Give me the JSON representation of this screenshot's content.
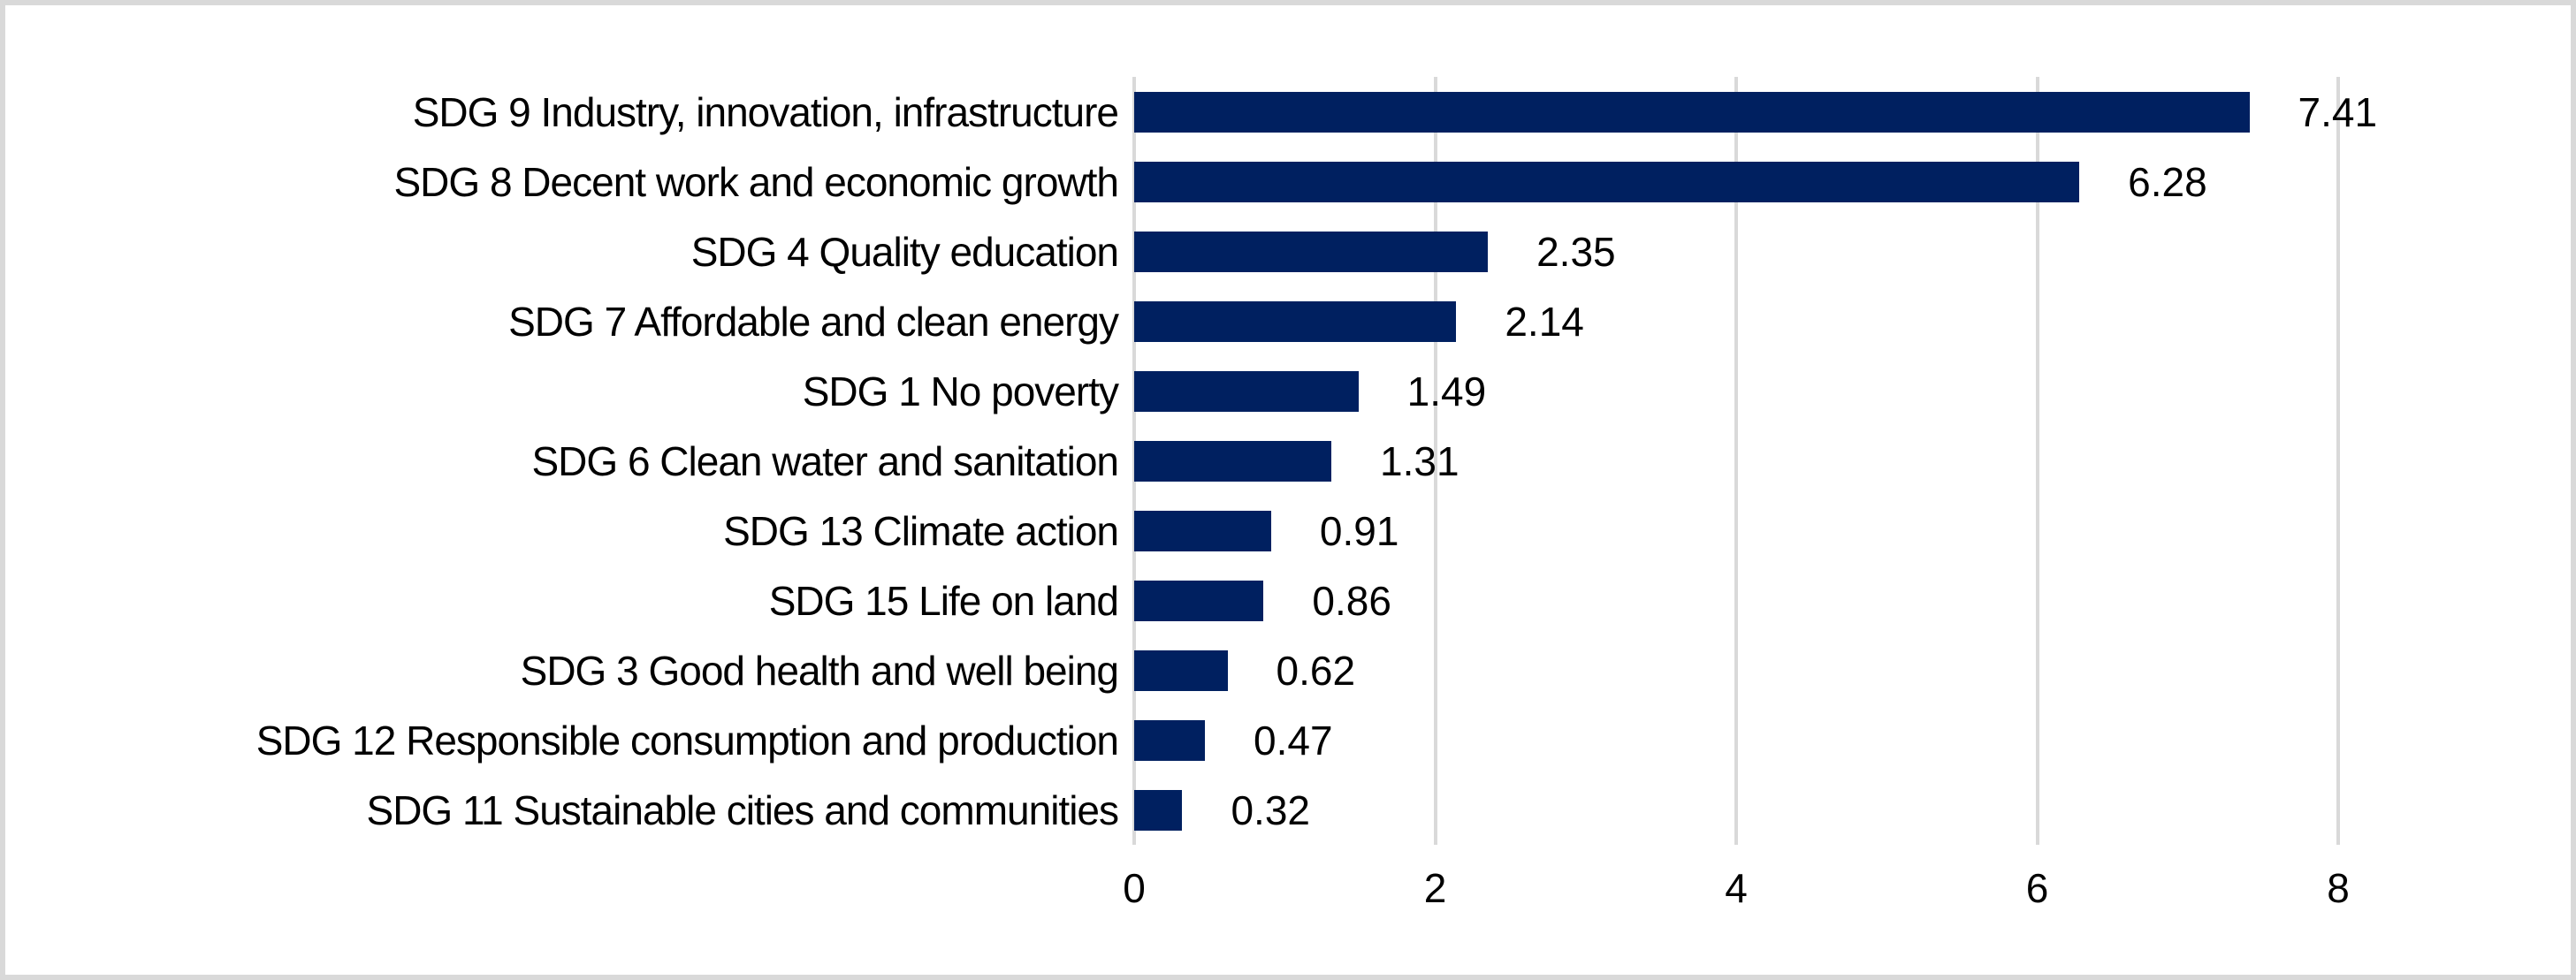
{
  "chart_data": {
    "type": "bar",
    "orientation": "horizontal",
    "title": "",
    "xlabel": "",
    "ylabel": "",
    "categories": [
      "SDG 9 Industry, innovation, infrastructure",
      "SDG 8 Decent work and economic growth",
      "SDG 4 Quality education",
      "SDG 7 Affordable and clean energy",
      "SDG 1 No poverty",
      "SDG 6 Clean water and sanitation",
      "SDG 13 Climate action",
      "SDG 15 Life on land",
      "SDG 3 Good health and well being",
      "SDG 12 Responsible consumption and production",
      "SDG 11 Sustainable cities and communities"
    ],
    "values": [
      7.41,
      6.28,
      2.35,
      2.14,
      1.49,
      1.31,
      0.91,
      0.86,
      0.62,
      0.47,
      0.32
    ],
    "value_labels": [
      "7.41",
      "6.28",
      "2.35",
      "2.14",
      "1.49",
      "1.31",
      "0.91",
      "0.86",
      "0.62",
      "0.47",
      "0.32"
    ],
    "x_ticks": [
      0,
      2,
      4,
      6,
      8
    ],
    "x_tick_labels": [
      "0",
      "2",
      "4",
      "6",
      "8"
    ],
    "xlim": [
      0,
      8.9
    ],
    "grid": true,
    "legend": false,
    "colors": {
      "bar": "#002060",
      "gridline": "#d9d9d9",
      "frame": "#d9d9d9",
      "text": "#000000",
      "background": "#ffffff"
    }
  }
}
